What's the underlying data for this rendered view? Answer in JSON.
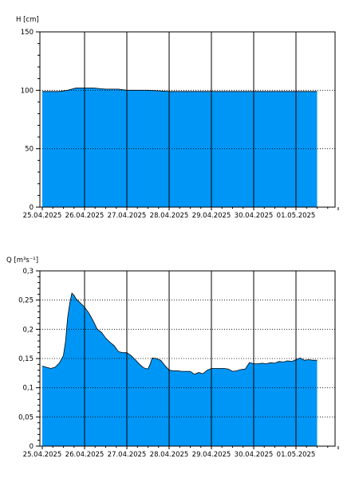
{
  "colors": {
    "fill": "#0096F5",
    "outline": "#000000",
    "grid": "#000000",
    "background": "#FFFFFF"
  },
  "chart_data": [
    {
      "type": "area",
      "title": "",
      "ylabel": "H [cm]",
      "xlabel": "",
      "ylim": [
        0,
        150
      ],
      "y_ticks": [
        0,
        50,
        100,
        150
      ],
      "y_tick_labels": [
        "0",
        "50",
        "100",
        "150"
      ],
      "x_ticks": [
        "25.04.2025",
        "26.04.2025",
        "27.04.2025",
        "28.04.2025",
        "29.04.2025",
        "30.04.2025",
        "01.05.2025"
      ],
      "grid": "vertical solid lines at day boundaries; dotted horizontal lines at 50 and 100",
      "legend": "none",
      "series": [
        {
          "x": [
            0.0,
            0.2,
            0.4,
            0.6,
            0.8,
            0.9,
            1.0,
            1.2,
            1.5,
            1.8,
            2.0,
            2.5,
            3.0,
            3.5,
            4.0,
            4.5,
            5.0,
            5.5,
            6.0,
            6.5
          ],
          "values": [
            99,
            99,
            99,
            100,
            102,
            102,
            102,
            102,
            101,
            101,
            100,
            100,
            99,
            99,
            99,
            99,
            99,
            99,
            99,
            99
          ]
        }
      ]
    },
    {
      "type": "area",
      "title": "",
      "ylabel": "Q [m³s⁻¹]",
      "xlabel": "",
      "ylim": [
        0,
        0.3
      ],
      "y_ticks": [
        0,
        0.05,
        0.1,
        0.15,
        0.2,
        0.25,
        0.3
      ],
      "y_tick_labels": [
        "0",
        "0,05",
        "0,1",
        "0,15",
        "0,2",
        "0,25",
        "0,3"
      ],
      "x_ticks": [
        "25.04.2025",
        "26.04.2025",
        "27.04.2025",
        "28.04.2025",
        "29.04.2025",
        "30.04.2025",
        "01.05.2025"
      ],
      "grid": "vertical solid lines at day boundaries; dotted horizontal lines at each tick",
      "legend": "none",
      "series": [
        {
          "x": [
            0.0,
            0.1,
            0.2,
            0.3,
            0.4,
            0.5,
            0.55,
            0.6,
            0.65,
            0.7,
            0.75,
            0.8,
            0.9,
            1.0,
            1.1,
            1.2,
            1.3,
            1.4,
            1.5,
            1.6,
            1.7,
            1.8,
            1.9,
            2.0,
            2.1,
            2.2,
            2.3,
            2.4,
            2.5,
            2.55,
            2.6,
            2.7,
            2.8,
            2.9,
            3.0,
            3.1,
            3.2,
            3.3,
            3.4,
            3.5,
            3.6,
            3.7,
            3.8,
            3.9,
            4.0,
            4.1,
            4.2,
            4.3,
            4.4,
            4.5,
            4.6,
            4.7,
            4.8,
            4.9,
            5.0,
            5.1,
            5.2,
            5.3,
            5.4,
            5.5,
            5.6,
            5.7,
            5.8,
            5.9,
            6.0,
            6.1,
            6.2,
            6.3,
            6.4,
            6.5
          ],
          "values": [
            0.137,
            0.135,
            0.133,
            0.135,
            0.142,
            0.155,
            0.18,
            0.22,
            0.245,
            0.262,
            0.258,
            0.252,
            0.245,
            0.238,
            0.228,
            0.215,
            0.2,
            0.195,
            0.185,
            0.178,
            0.172,
            0.162,
            0.16,
            0.16,
            0.155,
            0.148,
            0.14,
            0.134,
            0.132,
            0.14,
            0.151,
            0.15,
            0.147,
            0.138,
            0.13,
            0.129,
            0.129,
            0.128,
            0.128,
            0.128,
            0.123,
            0.126,
            0.124,
            0.13,
            0.133,
            0.133,
            0.133,
            0.133,
            0.132,
            0.128,
            0.129,
            0.131,
            0.132,
            0.143,
            0.141,
            0.141,
            0.142,
            0.141,
            0.143,
            0.142,
            0.145,
            0.144,
            0.146,
            0.145,
            0.148,
            0.151,
            0.147,
            0.148,
            0.147,
            0.147
          ]
        }
      ]
    }
  ]
}
